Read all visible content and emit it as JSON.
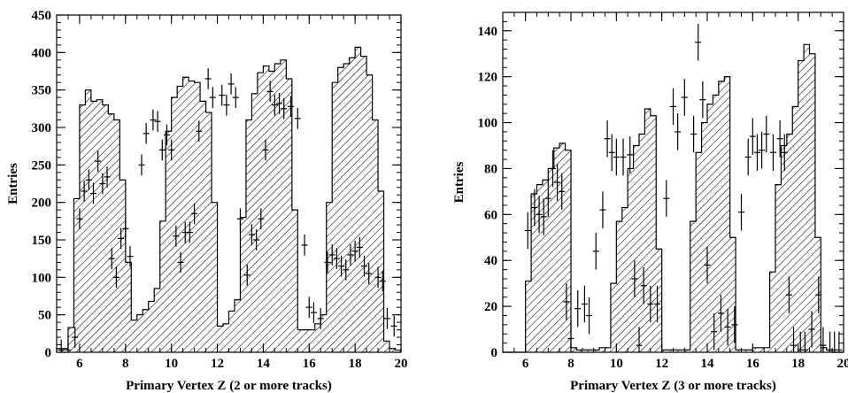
{
  "chart_data": [
    {
      "type": "histogram",
      "xlabel": "Primary Vertex Z (2 or more tracks)",
      "ylabel": "Entries",
      "xlim": [
        5,
        20
      ],
      "ylim": [
        0,
        450
      ],
      "xticks": [
        6,
        8,
        10,
        12,
        14,
        16,
        18,
        20
      ],
      "yticks": [
        0,
        50,
        100,
        150,
        200,
        250,
        300,
        350,
        400,
        450
      ],
      "bin_edges": [
        5.0,
        5.25,
        5.5,
        5.75,
        6.0,
        6.25,
        6.5,
        6.75,
        7.0,
        7.25,
        7.5,
        7.75,
        8.0,
        8.25,
        8.5,
        8.75,
        9.0,
        9.25,
        9.5,
        9.75,
        10.0,
        10.25,
        10.5,
        10.75,
        11.0,
        11.25,
        11.5,
        11.75,
        12.0,
        12.25,
        12.5,
        12.75,
        13.0,
        13.25,
        13.5,
        13.75,
        14.0,
        14.25,
        14.5,
        14.75,
        15.0,
        15.25,
        15.5,
        15.75,
        16.0,
        16.25,
        16.5,
        16.75,
        17.0,
        17.25,
        17.5,
        17.75,
        18.0,
        18.25,
        18.5,
        18.75,
        19.0,
        19.25,
        19.5,
        19.75,
        20.0
      ],
      "histogram": [
        5,
        5,
        33,
        205,
        330,
        350,
        335,
        337,
        330,
        318,
        310,
        230,
        120,
        43,
        50,
        57,
        68,
        85,
        175,
        295,
        340,
        355,
        367,
        362,
        360,
        335,
        320,
        200,
        35,
        38,
        55,
        70,
        180,
        310,
        345,
        373,
        382,
        375,
        385,
        390,
        365,
        190,
        30,
        30,
        30,
        38,
        50,
        200,
        360,
        380,
        385,
        393,
        407,
        395,
        370,
        310,
        215,
        15,
        5,
        3
      ],
      "points": {
        "x": [
          5.2,
          5.5,
          5.8,
          6.0,
          6.2,
          6.4,
          6.6,
          6.8,
          7.0,
          7.2,
          7.4,
          7.6,
          7.8,
          8.0,
          8.2,
          8.7,
          8.9,
          9.2,
          9.4,
          9.6,
          9.8,
          10.0,
          10.2,
          10.4,
          10.6,
          10.8,
          11.0,
          11.2,
          11.6,
          11.8,
          12.2,
          12.4,
          12.6,
          12.8,
          13.0,
          13.3,
          13.5,
          13.7,
          13.9,
          14.1,
          14.3,
          14.5,
          14.7,
          14.9,
          15.2,
          15.5,
          15.8,
          16.0,
          16.2,
          16.5,
          16.8,
          17.0,
          17.2,
          17.4,
          17.6,
          17.8,
          18.0,
          18.2,
          18.4,
          18.6,
          19.0,
          19.2,
          19.4,
          19.7
        ],
        "y": [
          3,
          3,
          20,
          178,
          215,
          230,
          212,
          255,
          225,
          234,
          125,
          100,
          152,
          165,
          128,
          250,
          292,
          310,
          308,
          270,
          290,
          270,
          155,
          120,
          160,
          160,
          185,
          295,
          365,
          340,
          343,
          330,
          358,
          340,
          178,
          103,
          157,
          150,
          178,
          270,
          348,
          330,
          332,
          325,
          328,
          312,
          143,
          60,
          53,
          45,
          120,
          130,
          125,
          115,
          110,
          130,
          135,
          140,
          115,
          105,
          100,
          95,
          45,
          35
        ],
        "yerr": 14
      }
    },
    {
      "type": "histogram",
      "xlabel": "Primary Vertex Z (3 or more tracks)",
      "ylabel": "Entries",
      "xlim": [
        5,
        20
      ],
      "ylim": [
        0,
        148
      ],
      "xticks": [
        6,
        8,
        10,
        12,
        14,
        16,
        18,
        20
      ],
      "yticks": [
        0,
        20,
        40,
        60,
        80,
        100,
        120,
        140
      ],
      "bin_edges": [
        5.0,
        5.25,
        5.5,
        5.75,
        6.0,
        6.25,
        6.5,
        6.75,
        7.0,
        7.25,
        7.5,
        7.75,
        8.0,
        8.25,
        8.5,
        8.75,
        9.0,
        9.25,
        9.5,
        9.75,
        10.0,
        10.25,
        10.5,
        10.75,
        11.0,
        11.25,
        11.5,
        11.75,
        12.0,
        12.25,
        12.5,
        12.75,
        13.0,
        13.25,
        13.5,
        13.75,
        14.0,
        14.25,
        14.5,
        14.75,
        15.0,
        15.25,
        15.5,
        15.75,
        16.0,
        16.25,
        16.5,
        16.75,
        17.0,
        17.25,
        17.5,
        17.75,
        18.0,
        18.25,
        18.5,
        18.75,
        19.0,
        19.25,
        19.5,
        19.75,
        20.0
      ],
      "histogram": [
        0,
        0,
        0,
        0,
        31,
        69,
        73,
        75,
        80,
        89,
        91,
        88,
        2,
        1,
        1,
        1,
        1,
        2,
        2,
        30,
        57,
        63,
        80,
        90,
        95,
        106,
        103,
        45,
        1,
        1,
        1,
        1,
        1,
        57,
        87,
        100,
        108,
        112,
        118,
        120,
        50,
        1,
        1,
        1,
        2,
        2,
        2,
        35,
        73,
        90,
        95,
        107,
        127,
        134,
        130,
        50,
        2,
        1,
        0,
        0
      ],
      "points": {
        "x": [
          6.1,
          6.4,
          6.6,
          6.8,
          7.0,
          7.2,
          7.4,
          7.6,
          7.8,
          8.0,
          8.3,
          8.6,
          8.8,
          9.1,
          9.4,
          9.6,
          9.8,
          10.0,
          10.3,
          10.6,
          10.8,
          11.0,
          11.2,
          11.5,
          11.8,
          12.2,
          12.5,
          12.7,
          13.0,
          13.4,
          13.6,
          13.8,
          14.0,
          14.3,
          14.6,
          14.9,
          15.2,
          15.5,
          15.8,
          16.0,
          16.2,
          16.4,
          16.6,
          16.9,
          17.2,
          17.4,
          17.6,
          17.8,
          18.1,
          18.3,
          18.6,
          18.9,
          19.1,
          19.4,
          19.6,
          19.8
        ],
        "y": [
          53,
          63,
          60,
          59,
          67,
          80,
          74,
          70,
          22,
          6,
          19,
          21,
          16,
          44,
          62,
          93,
          87,
          85,
          85,
          86,
          32,
          3,
          29,
          21,
          21,
          67,
          107,
          96,
          111,
          95,
          135,
          110,
          38,
          9,
          17,
          11,
          12,
          61,
          85,
          94,
          87,
          88,
          95,
          87,
          93,
          87,
          25,
          3,
          1,
          1,
          10,
          25,
          3,
          1,
          1,
          1
        ],
        "yerr": 8
      }
    }
  ]
}
